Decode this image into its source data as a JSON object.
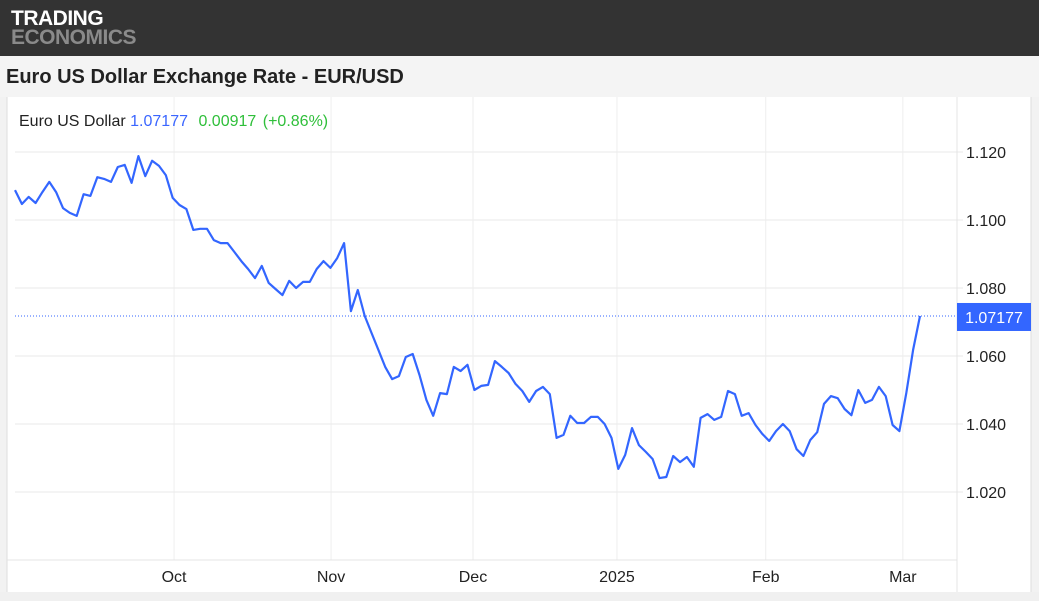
{
  "brand": {
    "line1": "TRADING",
    "line2": "ECONOMICS"
  },
  "page_title": "Euro US Dollar Exchange Rate - EUR/USD",
  "legend": {
    "name": "Euro US Dollar",
    "value": "1.07177",
    "change": "0.00917",
    "change_pct": "(+0.86%)"
  },
  "colors": {
    "line": "#3366ff",
    "positive": "#2fbf3a",
    "header": "#333333"
  },
  "chart_data": {
    "type": "line",
    "title": "Euro US Dollar Exchange Rate - EUR/USD",
    "series": [
      {
        "name": "Euro US Dollar",
        "values": [
          1.1088,
          1.1047,
          1.1068,
          1.105,
          1.1082,
          1.1112,
          1.1082,
          1.1035,
          1.1021,
          1.1012,
          1.1076,
          1.1071,
          1.1126,
          1.1121,
          1.1112,
          1.1156,
          1.1162,
          1.1109,
          1.1188,
          1.1129,
          1.1174,
          1.1159,
          1.1132,
          1.1065,
          1.1044,
          1.1032,
          1.0971,
          1.0974,
          1.0974,
          1.0941,
          1.0932,
          1.0932,
          1.0906,
          1.0879,
          1.0856,
          1.0829,
          1.0865,
          1.0815,
          1.0797,
          1.0779,
          1.0821,
          1.08,
          1.0818,
          1.0818,
          1.0856,
          1.0879,
          1.0859,
          1.0888,
          1.0932,
          1.0732,
          1.0794,
          1.0718,
          1.0668,
          1.0618,
          1.0568,
          1.0532,
          1.0541,
          1.0597,
          1.0606,
          1.0544,
          1.0471,
          1.0424,
          1.0491,
          1.0488,
          1.0568,
          1.0556,
          1.0574,
          1.05,
          1.0512,
          1.0515,
          1.0585,
          1.0568,
          1.055,
          1.0518,
          1.0497,
          1.0465,
          1.0497,
          1.0509,
          1.0488,
          1.0359,
          1.0368,
          1.0424,
          1.0403,
          1.0403,
          1.0421,
          1.0421,
          1.04,
          1.0359,
          1.0268,
          1.0309,
          1.0388,
          1.0338,
          1.0318,
          1.0297,
          1.0241,
          1.0244,
          1.0306,
          1.0288,
          1.0303,
          1.0274,
          1.0418,
          1.0429,
          1.0412,
          1.0421,
          1.0497,
          1.0488,
          1.0424,
          1.0432,
          1.0397,
          1.0371,
          1.035,
          1.0379,
          1.04,
          1.0379,
          1.0326,
          1.0306,
          1.0353,
          1.0376,
          1.0459,
          1.0482,
          1.0476,
          1.0444,
          1.0426,
          1.05,
          1.0462,
          1.0471,
          1.0509,
          1.0482,
          1.0397,
          1.0379,
          1.0491,
          1.0618,
          1.07177
        ]
      }
    ],
    "x_ticks": [
      {
        "label": "Oct",
        "index": 23.2
      },
      {
        "label": "Nov",
        "index": 46.1
      },
      {
        "label": "Dec",
        "index": 66.8
      },
      {
        "label": "2025",
        "index": 87.8
      },
      {
        "label": "Feb",
        "index": 109.5
      },
      {
        "label": "Mar",
        "index": 129.5
      }
    ],
    "y_ticks": [
      "1.120",
      "1.100",
      "1.080",
      "1.060",
      "1.040",
      "1.020"
    ],
    "ylim": [
      1.0,
      1.1345
    ],
    "last_value_label": "1.07177",
    "grid": true,
    "xlabel": "",
    "ylabel": ""
  }
}
